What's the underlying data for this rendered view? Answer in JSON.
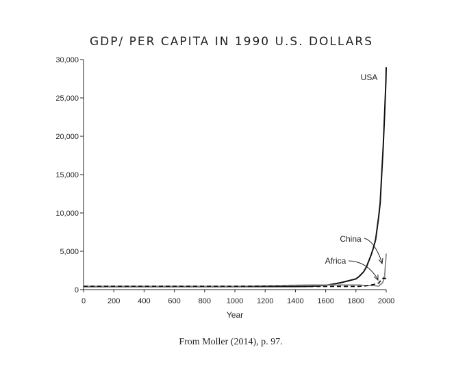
{
  "chart_data": {
    "type": "line",
    "title": "GDP/ PER CAPITA IN 1990 U.S. DOLLARS",
    "xlabel": "Year",
    "ylabel": "",
    "xlim": [
      0,
      2000
    ],
    "ylim": [
      0,
      30000
    ],
    "x_ticks": [
      "0",
      "200",
      "400",
      "600",
      "800",
      "1000",
      "1200",
      "1400",
      "1600",
      "1800",
      "2000"
    ],
    "y_ticks": [
      "0",
      "5,000",
      "10,000",
      "15,000",
      "20,000",
      "25,000",
      "30,000"
    ],
    "grid": false,
    "legend": "none",
    "series": [
      {
        "name": "USA",
        "color": "#111111",
        "style": "solid",
        "points": [
          [
            0,
            400
          ],
          [
            500,
            400
          ],
          [
            1000,
            400
          ],
          [
            1400,
            400
          ],
          [
            1500,
            420
          ],
          [
            1600,
            550
          ],
          [
            1700,
            900
          ],
          [
            1800,
            1400
          ],
          [
            1820,
            1700
          ],
          [
            1850,
            2300
          ],
          [
            1870,
            3000
          ],
          [
            1900,
            4500
          ],
          [
            1913,
            5300
          ],
          [
            1930,
            6500
          ],
          [
            1950,
            9500
          ],
          [
            1960,
            11300
          ],
          [
            1970,
            15000
          ],
          [
            1980,
            18600
          ],
          [
            1990,
            23200
          ],
          [
            1998,
            27300
          ],
          [
            2000,
            29000
          ]
        ]
      },
      {
        "name": "China",
        "color": "#888888",
        "style": "solid",
        "points": [
          [
            0,
            450
          ],
          [
            1000,
            450
          ],
          [
            1500,
            600
          ],
          [
            1820,
            600
          ],
          [
            1870,
            530
          ],
          [
            1913,
            550
          ],
          [
            1950,
            450
          ],
          [
            1960,
            650
          ],
          [
            1970,
            780
          ],
          [
            1980,
            1070
          ],
          [
            1990,
            1870
          ],
          [
            2000,
            4700
          ]
        ]
      },
      {
        "name": "Africa",
        "color": "#111111",
        "style": "dashed",
        "points": [
          [
            0,
            430
          ],
          [
            1000,
            430
          ],
          [
            1500,
            420
          ],
          [
            1820,
            420
          ],
          [
            1870,
            500
          ],
          [
            1913,
            640
          ],
          [
            1950,
            850
          ],
          [
            1970,
            1350
          ],
          [
            1980,
            1500
          ],
          [
            1990,
            1450
          ],
          [
            2000,
            1500
          ]
        ]
      }
    ],
    "annotations": [
      "USA",
      "China",
      "Africa"
    ]
  },
  "caption": "From Moller (2014), p. 97."
}
